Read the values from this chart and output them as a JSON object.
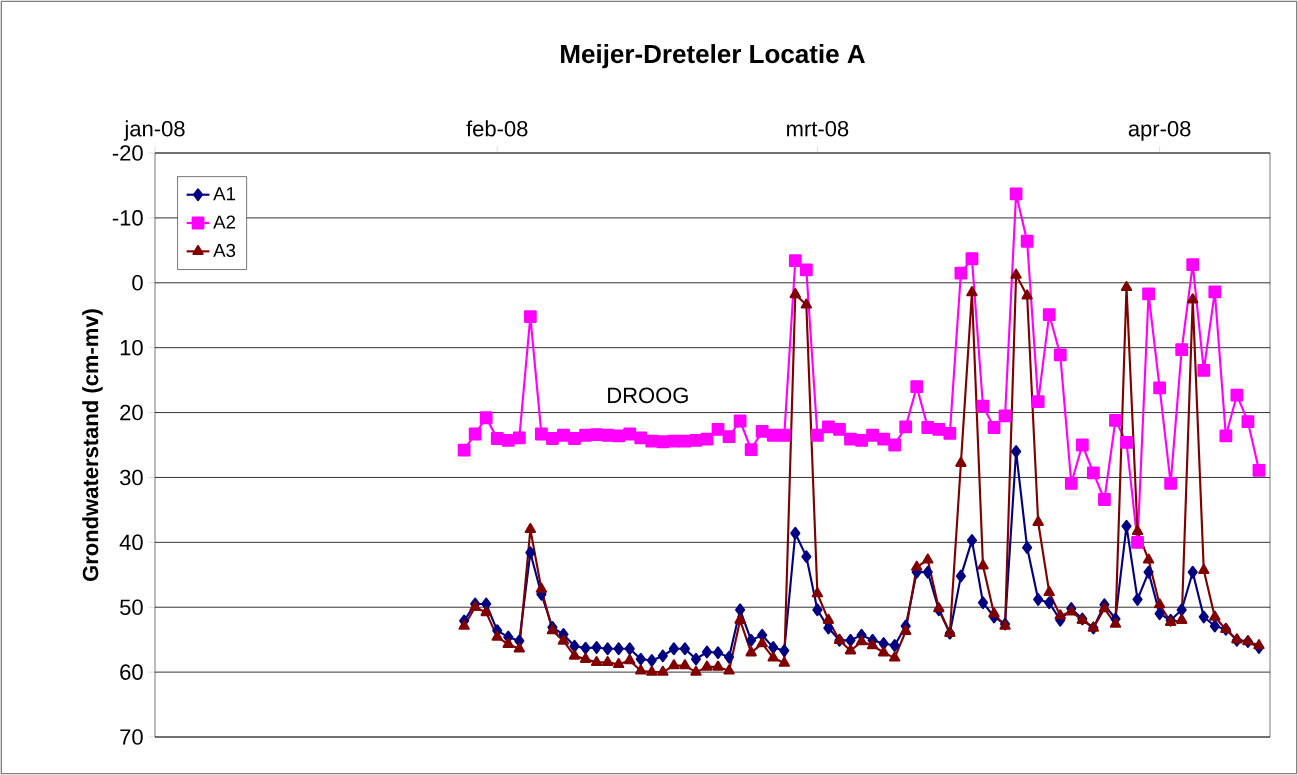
{
  "chart_data": {
    "type": "line",
    "title": "Meijer-Dreteler Locatie A",
    "ylabel": "Grondwaterstand (cm-mv)",
    "annotations": [
      "DROOG"
    ],
    "x": [
      "2008-01-29",
      "2008-01-30",
      "2008-01-31",
      "2008-02-01",
      "2008-02-02",
      "2008-02-03",
      "2008-02-04",
      "2008-02-05",
      "2008-02-06",
      "2008-02-07",
      "2008-02-08",
      "2008-02-09",
      "2008-02-10",
      "2008-02-11",
      "2008-02-12",
      "2008-02-13",
      "2008-02-14",
      "2008-02-15",
      "2008-02-16",
      "2008-02-17",
      "2008-02-18",
      "2008-02-19",
      "2008-02-20",
      "2008-02-21",
      "2008-02-22",
      "2008-02-23",
      "2008-02-24",
      "2008-02-25",
      "2008-02-26",
      "2008-02-27",
      "2008-02-28",
      "2008-02-29",
      "2008-03-01",
      "2008-03-02",
      "2008-03-03",
      "2008-03-04",
      "2008-03-05",
      "2008-03-06",
      "2008-03-07",
      "2008-03-08",
      "2008-03-09",
      "2008-03-10",
      "2008-03-11",
      "2008-03-12",
      "2008-03-13",
      "2008-03-14",
      "2008-03-15",
      "2008-03-16",
      "2008-03-17",
      "2008-03-18",
      "2008-03-19",
      "2008-03-20",
      "2008-03-21",
      "2008-03-22",
      "2008-03-23",
      "2008-03-24",
      "2008-03-25",
      "2008-03-26",
      "2008-03-27",
      "2008-03-28",
      "2008-03-29",
      "2008-03-30",
      "2008-03-31",
      "2008-04-01",
      "2008-04-02",
      "2008-04-03",
      "2008-04-04",
      "2008-04-05",
      "2008-04-06",
      "2008-04-07",
      "2008-04-08",
      "2008-04-09",
      "2008-04-10"
    ],
    "series": [
      {
        "name": "A1",
        "color": "#000080",
        "marker": "diamond",
        "values": [
          52.1,
          49.5,
          49.5,
          53.6,
          54.6,
          55.2,
          41.6,
          48,
          53.1,
          54.2,
          56,
          56.3,
          56.2,
          56.4,
          56.4,
          56.4,
          58,
          58.2,
          57.5,
          56.4,
          56.4,
          58,
          56.9,
          57,
          57.7,
          50.4,
          55.1,
          54.3,
          56.2,
          56.7,
          38.6,
          42.2,
          50.4,
          53.2,
          55.1,
          55.1,
          54.3,
          55.1,
          55.6,
          55.9,
          52.9,
          44.6,
          44.6,
          50.4,
          54,
          45.2,
          39.7,
          49.3,
          51.5,
          52.6,
          26,
          40.8,
          48.8,
          49.3,
          52,
          50.2,
          51.8,
          53.2,
          49.6,
          51.8,
          37.5,
          48.8,
          44.6,
          51,
          52,
          50.4,
          44.6,
          51.5,
          52.9,
          53.4,
          55.1,
          55.3,
          56.2
        ]
      },
      {
        "name": "A2",
        "color": "#ff00ff",
        "marker": "square",
        "values": [
          25.8,
          23.3,
          20.8,
          24,
          24.3,
          23.9,
          5.2,
          23.3,
          24,
          23.5,
          24,
          23.5,
          23.4,
          23.5,
          23.6,
          23.3,
          23.9,
          24.4,
          24.5,
          24.4,
          24.4,
          24.3,
          24.1,
          22.6,
          23.7,
          21.3,
          25.7,
          22.9,
          23.5,
          23.5,
          -3.4,
          -2,
          23.5,
          22.2,
          22.6,
          24.1,
          24.3,
          23.5,
          24.1,
          25,
          22.2,
          16,
          22.3,
          22.6,
          23.2,
          -1.5,
          -3.7,
          19,
          22.3,
          20.5,
          -13.7,
          -6.4,
          18.3,
          4.9,
          11.1,
          30.9,
          25,
          29.3,
          33.4,
          21.2,
          24.6,
          40,
          1.7,
          16.2,
          30.9,
          10.3,
          -2.8,
          13.5,
          1.4,
          23.6,
          17.3,
          21.4,
          28.9
        ]
      },
      {
        "name": "A3",
        "color": "#800000",
        "marker": "triangle",
        "values": [
          52.9,
          50,
          50.8,
          54.6,
          55.7,
          56.4,
          38,
          47.2,
          53.6,
          55.2,
          57.5,
          58,
          58.5,
          58.5,
          58.8,
          58.2,
          59.8,
          60,
          60,
          59,
          59,
          60,
          59.2,
          59.2,
          59.8,
          52,
          57,
          55.6,
          57.8,
          58.6,
          1.8,
          3.4,
          47.9,
          52,
          55.1,
          56.7,
          55.3,
          55.9,
          57,
          57.8,
          53.7,
          43.8,
          42.7,
          50.2,
          54,
          27.8,
          1.5,
          43.6,
          51,
          52.9,
          -1.2,
          2,
          36.9,
          47.7,
          51.3,
          50.7,
          52,
          53.2,
          50.2,
          52.6,
          0.7,
          38.3,
          42.7,
          49.6,
          52.3,
          52,
          2.6,
          44.3,
          51.5,
          53.4,
          55,
          55.3,
          55.9
        ]
      }
    ],
    "xlim": [
      "2008-01-01",
      "2008-04-11"
    ],
    "xticks": [
      {
        "value": "2008-01-01",
        "label": "jan-08"
      },
      {
        "value": "2008-02-01",
        "label": "feb-08"
      },
      {
        "value": "2008-03-01",
        "label": "mrt-08"
      },
      {
        "value": "2008-04-01",
        "label": "apr-08"
      }
    ],
    "ylim": [
      70,
      -20
    ],
    "yticks": [
      -20,
      -10,
      0,
      10,
      20,
      30,
      40,
      50,
      60,
      70
    ],
    "grid": "y",
    "legend": "top left",
    "line_style": "solid"
  }
}
